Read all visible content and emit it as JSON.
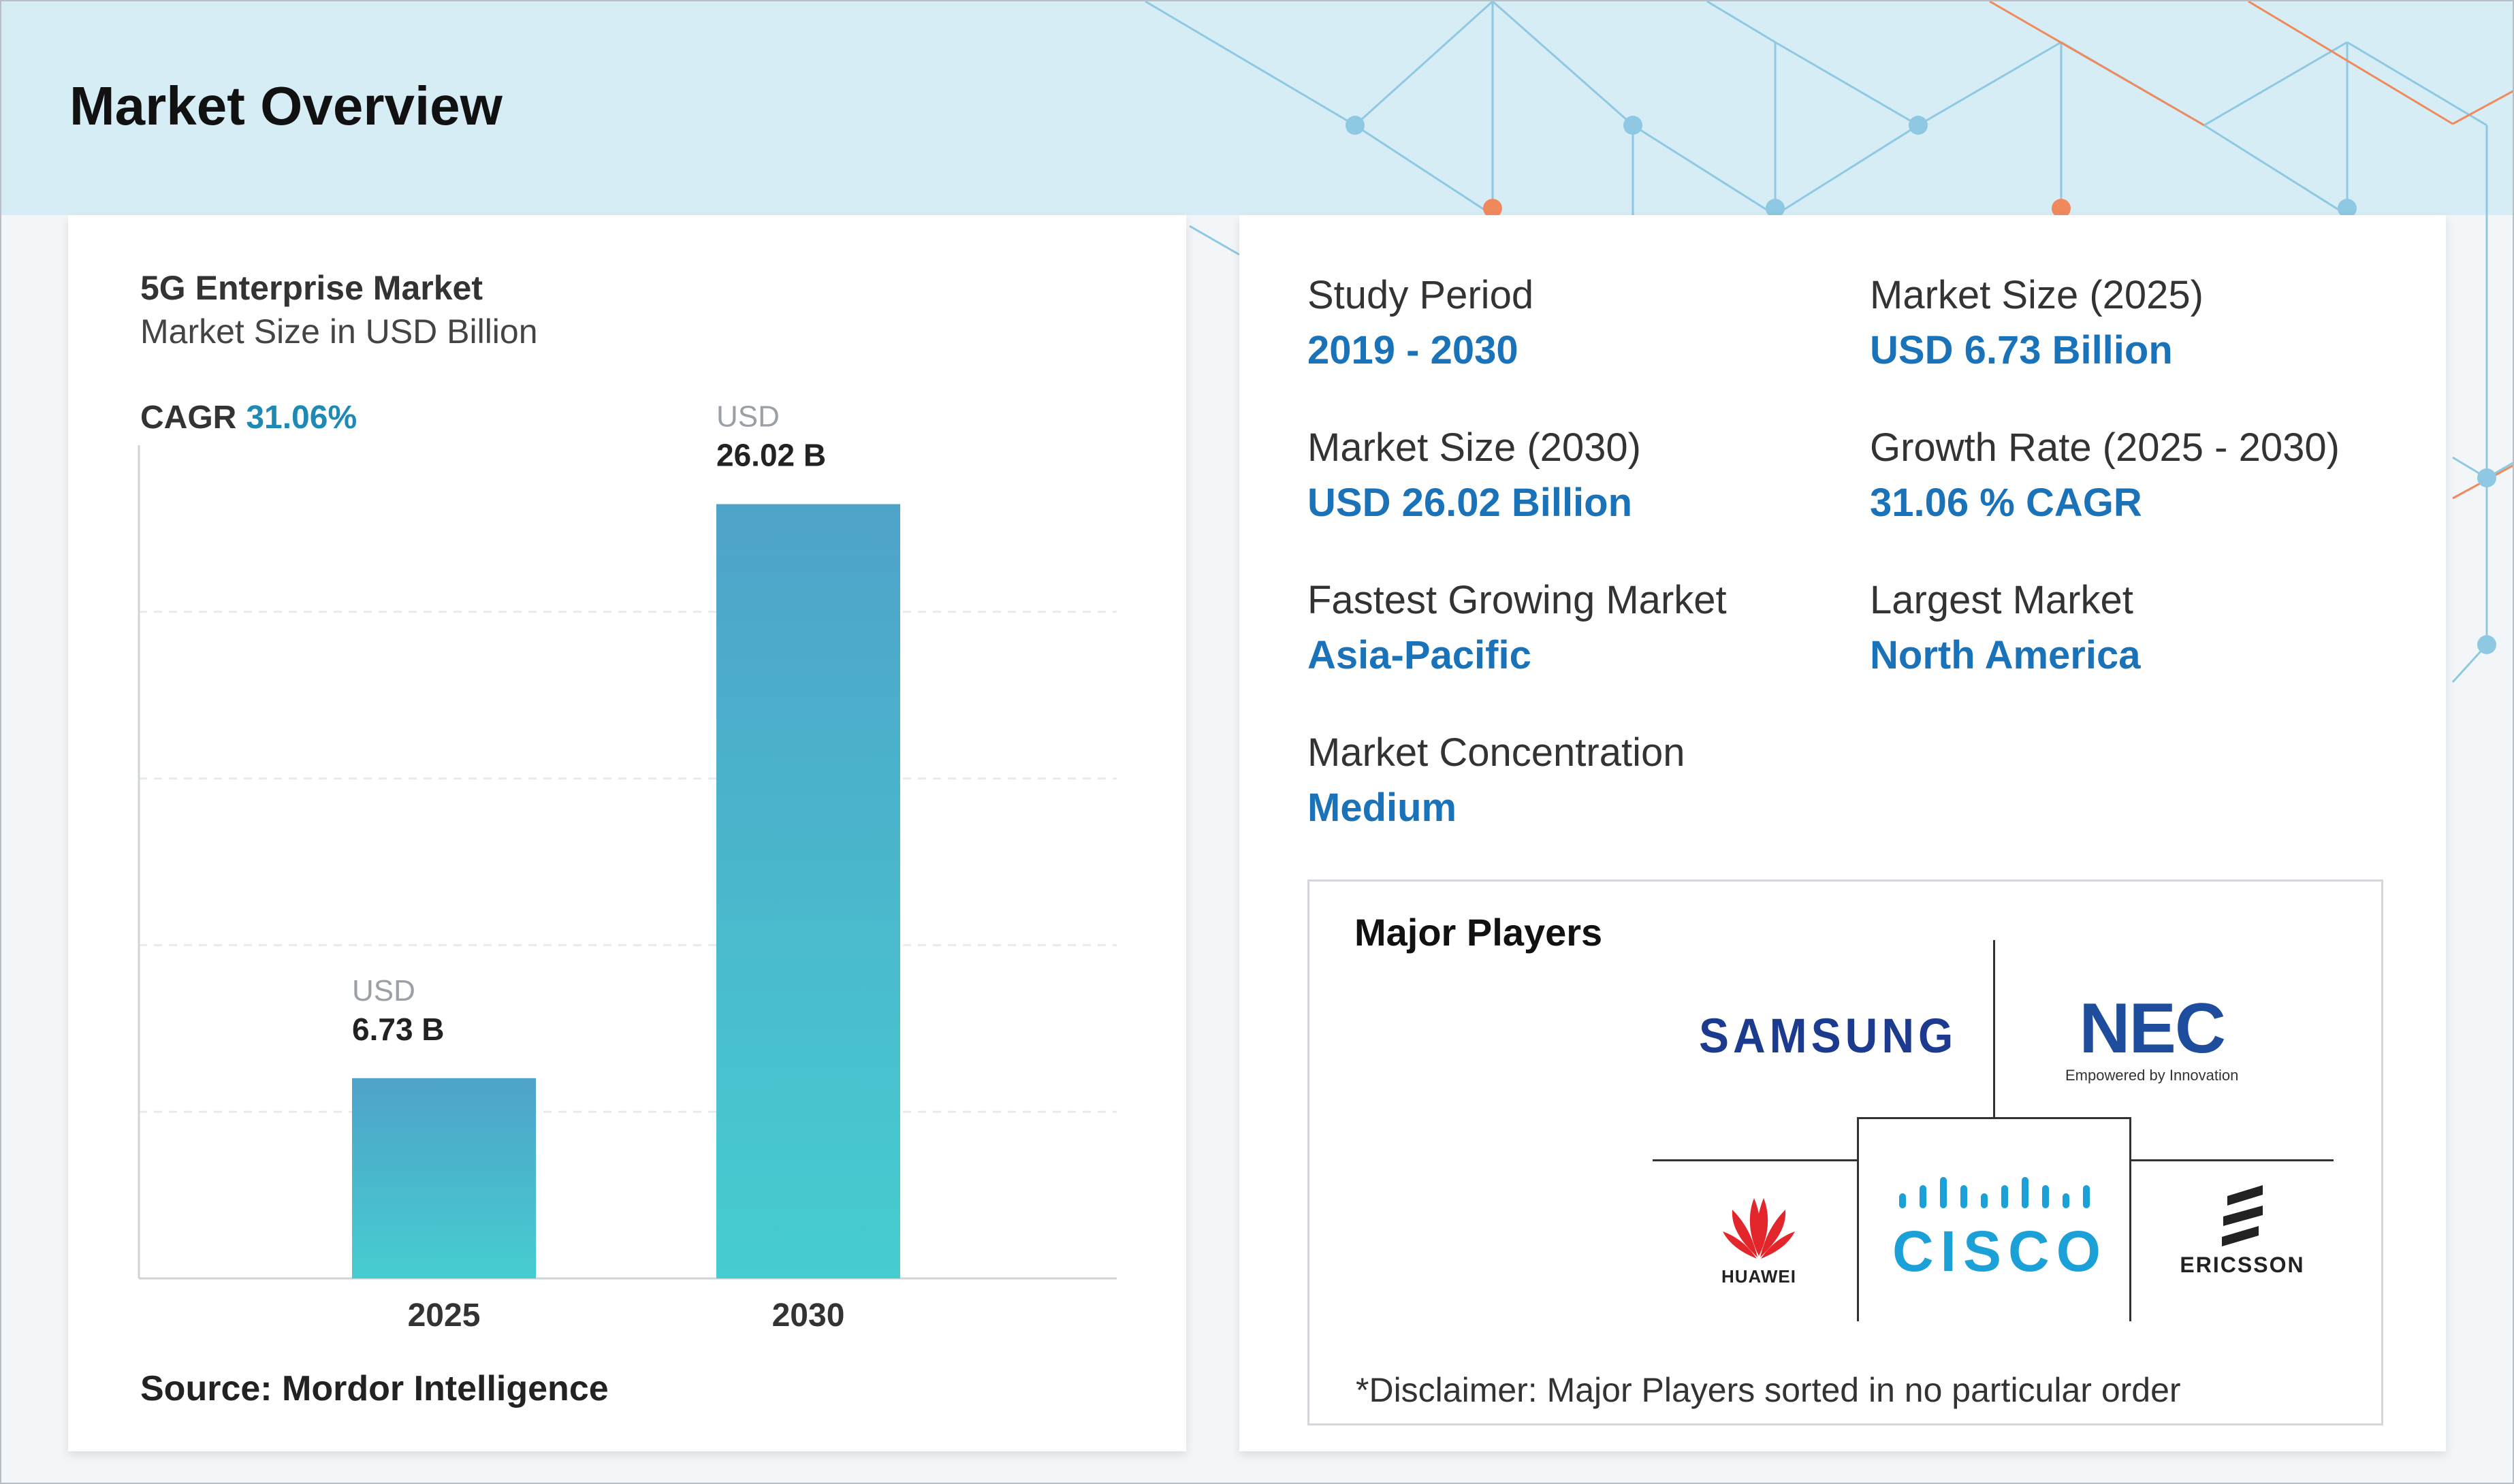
{
  "page_title": "Market Overview",
  "chart_data": {
    "type": "bar",
    "title": "5G Enterprise Market",
    "subtitle": "Market Size in USD Billion",
    "categories": [
      "2025",
      "2030"
    ],
    "values": [
      6.73,
      26.02
    ],
    "value_prefix": "USD",
    "value_labels": [
      "6.73 B",
      "26.02 B"
    ],
    "cagr_label": "CAGR",
    "cagr_value": "31.06%",
    "ylim": [
      0,
      28
    ],
    "grid": true,
    "source": "Source: Mordor Intelligence"
  },
  "stats": [
    {
      "label": "Study Period",
      "value": "2019 - 2030"
    },
    {
      "label": "Market Size (2025)",
      "value": "USD 6.73 Billion"
    },
    {
      "label": "Market Size (2030)",
      "value": "USD 26.02 Billion"
    },
    {
      "label": "Growth Rate (2025 - 2030)",
      "value": "31.06 % CAGR"
    },
    {
      "label": "Fastest Growing Market",
      "value": "Asia-Pacific"
    },
    {
      "label": "Largest Market",
      "value": "North America"
    },
    {
      "label": "Market Concentration",
      "value": "Medium"
    }
  ],
  "players": {
    "title": "Major Players",
    "logos": {
      "samsung": "SAMSUNG",
      "nec": "NEC",
      "nec_tagline": "Empowered by Innovation",
      "cisco": "CISCO",
      "huawei": "HUAWEI",
      "ericsson": "ERICSSON"
    },
    "disclaimer": "*Disclaimer: Major Players sorted in no particular order"
  },
  "colors": {
    "accent": "#1a72b8",
    "bar_top": "#4ea3c9",
    "bar_bottom": "#46cdd0",
    "header_band": "#d7edf5"
  }
}
